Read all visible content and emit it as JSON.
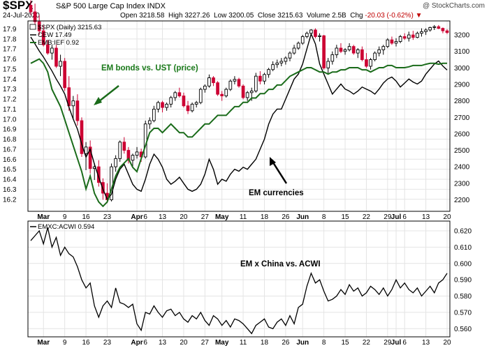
{
  "header": {
    "symbol": "$SPX",
    "name": "S&P 500 Large Cap Index  INDX",
    "date": "24-Jul-2020",
    "open_label": "Open",
    "open": "3218.58",
    "high_label": "High",
    "high": "3227.26",
    "low_label": "Low",
    "low": "3200.05",
    "close_label": "Close",
    "close": "3215.63",
    "volume_label": "Volume",
    "volume": "2.5B",
    "chg_label": "Chg",
    "chg": "-20.03 (-0.62%)",
    "brand": "@ StockCharts.com"
  },
  "colors": {
    "up": "#000000",
    "down": "#cc0033",
    "cew": "#000000",
    "emb": "#1a6b1a",
    "ratio": "#000000"
  },
  "chart_data": [
    {
      "type": "line",
      "legend": [
        {
          "label": "$SPX (Daily) 3215.63"
        },
        {
          "label": "CEW 17.49"
        },
        {
          "label": "EMB:IEF 0.92"
        }
      ],
      "left_axis": {
        "ylim": [
          16.08,
          17.98
        ],
        "ticks": [
          "17.9",
          "17.8",
          "17.7",
          "17.6",
          "17.5",
          "17.4",
          "17.3",
          "17.2",
          "17.1",
          "17.0",
          "16.9",
          "16.8",
          "16.7",
          "16.6",
          "16.5",
          "16.4",
          "16.3",
          "16.2"
        ]
      },
      "right_axis": {
        "ylim": [
          2130,
          3285
        ],
        "ticks": [
          "3200",
          "3100",
          "3000",
          "2900",
          "2800",
          "2700",
          "2600",
          "2500",
          "2400",
          "2300",
          "2200"
        ]
      },
      "x_ticks": [
        {
          "label": "Mar",
          "i": 3,
          "bold": true
        },
        {
          "label": "9",
          "i": 8
        },
        {
          "label": "16",
          "i": 13
        },
        {
          "label": "23",
          "i": 18
        },
        {
          "label": "Apr",
          "i": 25,
          "bold": true
        },
        {
          "label": "6",
          "i": 27
        },
        {
          "label": "13",
          "i": 31
        },
        {
          "label": "20",
          "i": 36
        },
        {
          "label": "27",
          "i": 41
        },
        {
          "label": "May",
          "i": 45,
          "bold": true
        },
        {
          "label": "11",
          "i": 50
        },
        {
          "label": "18",
          "i": 55
        },
        {
          "label": "26",
          "i": 60
        },
        {
          "label": "Jun",
          "i": 64,
          "bold": true
        },
        {
          "label": "8",
          "i": 69
        },
        {
          "label": "15",
          "i": 74
        },
        {
          "label": "22",
          "i": 79
        },
        {
          "label": "29",
          "i": 84
        },
        {
          "label": "Jul",
          "i": 86,
          "bold": true
        },
        {
          "label": "6",
          "i": 88
        },
        {
          "label": "13",
          "i": 93
        },
        {
          "label": "20",
          "i": 98
        }
      ],
      "spx_ohlc": [
        [
          3380,
          3410,
          3320,
          3340
        ],
        [
          3340,
          3390,
          3250,
          3280
        ],
        [
          3280,
          3320,
          3200,
          3225
        ],
        [
          3225,
          3260,
          3130,
          3140
        ],
        [
          3140,
          3170,
          3080,
          3090
        ],
        [
          3090,
          3140,
          3050,
          3120
        ],
        [
          3120,
          3140,
          3000,
          3010
        ],
        [
          3010,
          3080,
          2950,
          3040
        ],
        [
          3040,
          3060,
          2860,
          2880
        ],
        [
          2880,
          2950,
          2740,
          2770
        ],
        [
          2770,
          2830,
          2690,
          2800
        ],
        [
          2800,
          2840,
          2650,
          2680
        ],
        [
          2680,
          2700,
          2460,
          2480
        ],
        [
          2480,
          2550,
          2380,
          2520
        ],
        [
          2520,
          2560,
          2360,
          2390
        ],
        [
          2390,
          2420,
          2320,
          2400
        ],
        [
          2400,
          2440,
          2280,
          2305
        ],
        [
          2305,
          2330,
          2200,
          2240
        ],
        [
          2240,
          2300,
          2180,
          2200
        ],
        [
          2200,
          2420,
          2190,
          2400
        ],
        [
          2400,
          2470,
          2370,
          2450
        ],
        [
          2450,
          2560,
          2430,
          2550
        ],
        [
          2550,
          2580,
          2480,
          2500
        ],
        [
          2500,
          2520,
          2420,
          2440
        ],
        [
          2440,
          2480,
          2400,
          2470
        ],
        [
          2470,
          2520,
          2450,
          2490
        ],
        [
          2490,
          2510,
          2430,
          2460
        ],
        [
          2460,
          2680,
          2450,
          2660
        ],
        [
          2660,
          2700,
          2630,
          2680
        ],
        [
          2680,
          2770,
          2670,
          2750
        ],
        [
          2750,
          2800,
          2730,
          2790
        ],
        [
          2790,
          2800,
          2730,
          2760
        ],
        [
          2760,
          2790,
          2740,
          2780
        ],
        [
          2780,
          2830,
          2760,
          2820
        ],
        [
          2820,
          2860,
          2800,
          2850
        ],
        [
          2850,
          2880,
          2820,
          2830
        ],
        [
          2830,
          2850,
          2760,
          2770
        ],
        [
          2770,
          2800,
          2720,
          2740
        ],
        [
          2740,
          2790,
          2730,
          2780
        ],
        [
          2780,
          2800,
          2760,
          2790
        ],
        [
          2790,
          2880,
          2780,
          2870
        ],
        [
          2870,
          2900,
          2850,
          2890
        ],
        [
          2890,
          2960,
          2880,
          2940
        ],
        [
          2940,
          2950,
          2890,
          2910
        ],
        [
          2910,
          2920,
          2830,
          2840
        ],
        [
          2840,
          2860,
          2800,
          2830
        ],
        [
          2830,
          2880,
          2820,
          2870
        ],
        [
          2870,
          2930,
          2860,
          2920
        ],
        [
          2920,
          2950,
          2900,
          2930
        ],
        [
          2930,
          2940,
          2880,
          2890
        ],
        [
          2890,
          2900,
          2810,
          2820
        ],
        [
          2820,
          2860,
          2800,
          2850
        ],
        [
          2850,
          2880,
          2800,
          2860
        ],
        [
          2860,
          2970,
          2850,
          2950
        ],
        [
          2950,
          2980,
          2900,
          2920
        ],
        [
          2920,
          2970,
          2900,
          2960
        ],
        [
          2960,
          3000,
          2940,
          2990
        ],
        [
          2990,
          3040,
          2980,
          3020
        ],
        [
          3020,
          3050,
          3000,
          3030
        ],
        [
          3030,
          3060,
          3010,
          3040
        ],
        [
          3040,
          3070,
          3020,
          3060
        ],
        [
          3060,
          3100,
          3040,
          3090
        ],
        [
          3090,
          3140,
          3080,
          3120
        ],
        [
          3120,
          3160,
          3110,
          3150
        ],
        [
          3150,
          3200,
          3140,
          3190
        ],
        [
          3190,
          3220,
          3180,
          3210
        ],
        [
          3210,
          3235,
          3200,
          3230
        ],
        [
          3230,
          3240,
          3180,
          3190
        ],
        [
          3190,
          3210,
          3160,
          3195
        ],
        [
          3195,
          3200,
          2990,
          3000
        ],
        [
          3000,
          3060,
          2960,
          3040
        ],
        [
          3040,
          3100,
          3020,
          3080
        ],
        [
          3080,
          3140,
          3060,
          3120
        ],
        [
          3120,
          3150,
          3090,
          3100
        ],
        [
          3100,
          3120,
          3080,
          3110
        ],
        [
          3110,
          3150,
          3100,
          3130
        ],
        [
          3130,
          3140,
          3080,
          3090
        ],
        [
          3090,
          3120,
          3060,
          3110
        ],
        [
          3110,
          3130,
          3040,
          3050
        ],
        [
          3050,
          3090,
          3000,
          3010
        ],
        [
          3010,
          3060,
          2990,
          3050
        ],
        [
          3050,
          3100,
          3040,
          3090
        ],
        [
          3090,
          3130,
          3070,
          3110
        ],
        [
          3110,
          3140,
          3080,
          3130
        ],
        [
          3130,
          3180,
          3120,
          3170
        ],
        [
          3170,
          3190,
          3140,
          3150
        ],
        [
          3150,
          3180,
          3130,
          3160
        ],
        [
          3160,
          3200,
          3150,
          3190
        ],
        [
          3190,
          3210,
          3170,
          3180
        ],
        [
          3180,
          3220,
          3160,
          3200
        ],
        [
          3200,
          3225,
          3170,
          3185
        ],
        [
          3185,
          3220,
          3180,
          3210
        ],
        [
          3210,
          3240,
          3190,
          3220
        ],
        [
          3220,
          3240,
          3200,
          3230
        ],
        [
          3230,
          3250,
          3220,
          3245
        ],
        [
          3245,
          3260,
          3230,
          3250
        ],
        [
          3250,
          3260,
          3235,
          3240
        ],
        [
          3240,
          3245,
          3210,
          3225
        ],
        [
          3225,
          3235,
          3205,
          3215
        ]
      ],
      "cew": [
        17.82,
        17.75,
        17.68,
        17.62,
        17.55,
        17.48,
        17.4,
        17.33,
        17.25,
        17.12,
        17.0,
        16.9,
        16.75,
        16.62,
        16.7,
        16.55,
        16.42,
        16.3,
        16.2,
        16.25,
        16.4,
        16.5,
        16.55,
        16.45,
        16.35,
        16.3,
        16.28,
        16.4,
        16.55,
        16.65,
        16.6,
        16.52,
        16.4,
        16.35,
        16.38,
        16.42,
        16.36,
        16.3,
        16.28,
        16.3,
        16.35,
        16.45,
        16.6,
        16.5,
        16.35,
        16.4,
        16.38,
        16.45,
        16.5,
        16.48,
        16.52,
        16.5,
        16.55,
        16.6,
        16.7,
        16.8,
        16.95,
        17.05,
        17.1,
        17.1,
        17.2,
        17.3,
        17.4,
        17.45,
        17.55,
        17.7,
        17.85,
        17.75,
        17.55,
        17.45,
        17.35,
        17.25,
        17.3,
        17.35,
        17.3,
        17.28,
        17.25,
        17.28,
        17.32,
        17.3,
        17.28,
        17.25,
        17.3,
        17.36,
        17.4,
        17.42,
        17.38,
        17.32,
        17.36,
        17.4,
        17.37,
        17.35,
        17.38,
        17.45,
        17.5,
        17.55,
        17.58,
        17.53,
        17.49
      ],
      "emb_ief": [
        0.92,
        0.925,
        0.93,
        0.92,
        0.9,
        0.86,
        0.84,
        0.82,
        0.79,
        0.76,
        0.73,
        0.7,
        0.67,
        0.63,
        0.66,
        0.62,
        0.6,
        0.59,
        0.6,
        0.63,
        0.66,
        0.68,
        0.69,
        0.7,
        0.68,
        0.67,
        0.7,
        0.73,
        0.76,
        0.77,
        0.77,
        0.76,
        0.77,
        0.78,
        0.77,
        0.76,
        0.76,
        0.75,
        0.75,
        0.76,
        0.77,
        0.78,
        0.78,
        0.79,
        0.8,
        0.8,
        0.8,
        0.81,
        0.82,
        0.82,
        0.83,
        0.83,
        0.84,
        0.84,
        0.85,
        0.85,
        0.86,
        0.86,
        0.87,
        0.87,
        0.88,
        0.89,
        0.895,
        0.9,
        0.905,
        0.91,
        0.91,
        0.905,
        0.9,
        0.9,
        0.895,
        0.9,
        0.9,
        0.905,
        0.905,
        0.91,
        0.91,
        0.91,
        0.905,
        0.905,
        0.9,
        0.905,
        0.91,
        0.91,
        0.915,
        0.915,
        0.91,
        0.91,
        0.91,
        0.912,
        0.915,
        0.915,
        0.915,
        0.918,
        0.92,
        0.92,
        0.918,
        0.92,
        0.92
      ],
      "emb_map": {
        "a": 0.59,
        "b": 0.93
      },
      "annotations": [
        {
          "text": "EM bonds vs. UST (price)",
          "color": "green"
        },
        {
          "text": "EM currencies"
        }
      ]
    },
    {
      "type": "line",
      "legend": [
        {
          "label": "EMXC:ACWI 0.594"
        }
      ],
      "ylim": [
        0.555,
        0.626
      ],
      "ticks": [
        "0.620",
        "0.610",
        "0.600",
        "0.590",
        "0.580",
        "0.570",
        "0.560"
      ],
      "values": [
        0.614,
        0.617,
        0.62,
        0.612,
        0.622,
        0.61,
        0.616,
        0.605,
        0.61,
        0.606,
        0.604,
        0.598,
        0.59,
        0.585,
        0.588,
        0.574,
        0.567,
        0.574,
        0.577,
        0.573,
        0.585,
        0.576,
        0.575,
        0.573,
        0.575,
        0.563,
        0.559,
        0.57,
        0.569,
        0.574,
        0.57,
        0.567,
        0.571,
        0.572,
        0.568,
        0.57,
        0.566,
        0.564,
        0.568,
        0.566,
        0.57,
        0.565,
        0.562,
        0.568,
        0.566,
        0.562,
        0.565,
        0.561,
        0.566,
        0.565,
        0.563,
        0.56,
        0.557,
        0.562,
        0.564,
        0.566,
        0.561,
        0.56,
        0.564,
        0.566,
        0.562,
        0.568,
        0.563,
        0.573,
        0.575,
        0.586,
        0.594,
        0.588,
        0.59,
        0.583,
        0.577,
        0.578,
        0.58,
        0.584,
        0.581,
        0.587,
        0.583,
        0.585,
        0.58,
        0.582,
        0.586,
        0.584,
        0.581,
        0.585,
        0.58,
        0.584,
        0.59,
        0.585,
        0.588,
        0.584,
        0.582,
        0.585,
        0.58,
        0.583,
        0.586,
        0.582,
        0.588,
        0.59,
        0.594
      ],
      "annotations": [
        {
          "text": "EM x China vs. ACWI"
        }
      ]
    }
  ]
}
